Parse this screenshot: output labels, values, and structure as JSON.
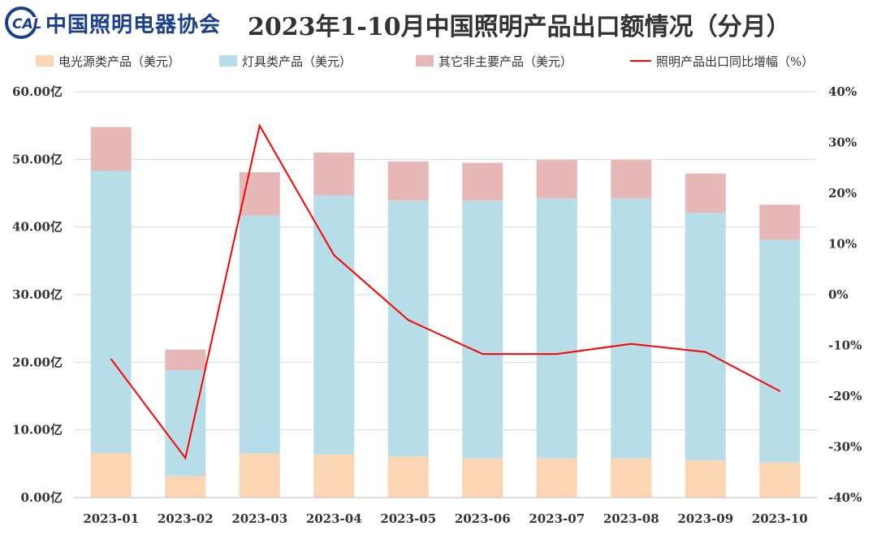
{
  "header": {
    "logo_text": "中国照明电器协会",
    "logo_mark": "CALI",
    "title": "2023年1-10月中国照明产品出口额情况（分月）"
  },
  "colors": {
    "light_source": "#fcd5b4",
    "lamps": "#b7dde8",
    "other": "#e6b8b7",
    "yoy_line": "#ff0000",
    "logo": "#1a3f8f",
    "grid": "#d9d9d9"
  },
  "legend": [
    {
      "name": "电光源类产品（美元）",
      "color": "#fcd5b4",
      "kind": "swatch"
    },
    {
      "name": "灯具类产品（美元）",
      "color": "#b7dde8",
      "kind": "swatch"
    },
    {
      "name": "其它非主要产品（美元）",
      "color": "#e6b8b7",
      "kind": "swatch"
    },
    {
      "name": "照明产品出口同比增幅（%）",
      "color": "#ff0000",
      "kind": "line"
    }
  ],
  "chart_data": {
    "type": "bar",
    "stacked": true,
    "title": "2023年1-10月中国照明产品出口额情况（分月）",
    "categories": [
      "2023-01",
      "2023-02",
      "2023-03",
      "2023-04",
      "2023-05",
      "2023-06",
      "2023-07",
      "2023-08",
      "2023-09",
      "2023-10"
    ],
    "series": [
      {
        "name": "电光源类产品（美元）",
        "axis": "left",
        "values": [
          6.6,
          3.2,
          6.5,
          6.4,
          6.1,
          5.8,
          5.8,
          5.8,
          5.5,
          5.2
        ]
      },
      {
        "name": "灯具类产品（美元）",
        "axis": "left",
        "values": [
          41.7,
          15.6,
          35.2,
          38.3,
          37.8,
          38.1,
          38.4,
          38.4,
          36.6,
          32.9
        ]
      },
      {
        "name": "其它非主要产品（美元）",
        "axis": "left",
        "values": [
          6.5,
          3.1,
          6.4,
          6.3,
          5.8,
          5.6,
          5.7,
          5.7,
          5.8,
          5.2
        ]
      },
      {
        "name": "照明产品出口同比增幅（%）",
        "axis": "right",
        "type": "line",
        "values": [
          -12.7,
          -32.2,
          33.3,
          7.8,
          -5.0,
          -11.7,
          -11.7,
          -9.7,
          -11.3,
          -19.0
        ]
      }
    ],
    "y_left": {
      "ylim": [
        0,
        60
      ],
      "ticks": [
        "0.00亿",
        "10.00亿",
        "20.00亿",
        "30.00亿",
        "40.00亿",
        "50.00亿",
        "60.00亿"
      ]
    },
    "y_right": {
      "ylim": [
        -40,
        40
      ],
      "ticks": [
        "-40%",
        "-30%",
        "-20%",
        "-10%",
        "0%",
        "10%",
        "20%",
        "30%",
        "40%"
      ]
    },
    "grid": true,
    "legend_position": "top"
  }
}
